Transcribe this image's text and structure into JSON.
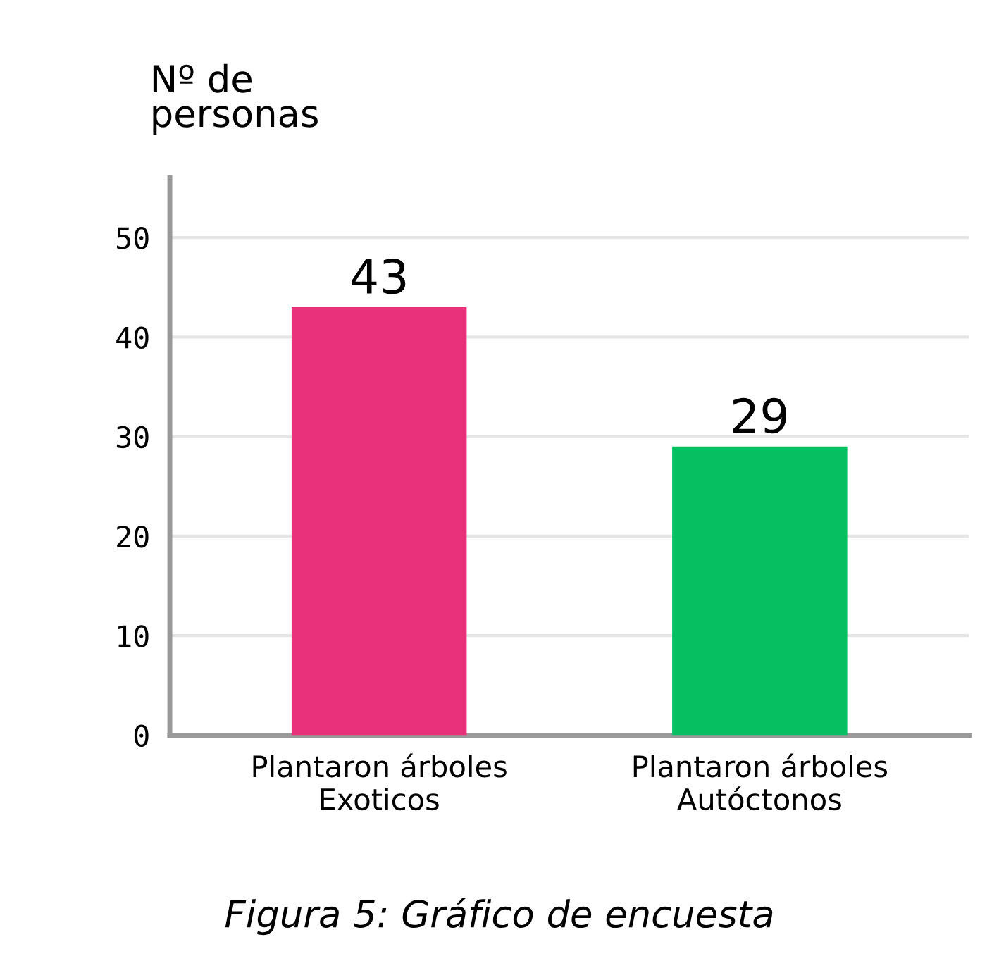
{
  "chart_data": {
    "type": "bar",
    "ylabel": "Nº de\npersonas",
    "categories": [
      "Plantaron árboles\nExoticos",
      "Plantaron árboles\nAutóctonos"
    ],
    "values": [
      43,
      29
    ],
    "colors": [
      "#e8317a",
      "#05bf60"
    ],
    "ylim": [
      0,
      56
    ],
    "yticks": [
      0,
      10,
      20,
      30,
      40,
      50
    ],
    "grid": "y",
    "data_labels": true,
    "annotations": [
      "Figura 5: Gráfico de encuesta"
    ]
  }
}
